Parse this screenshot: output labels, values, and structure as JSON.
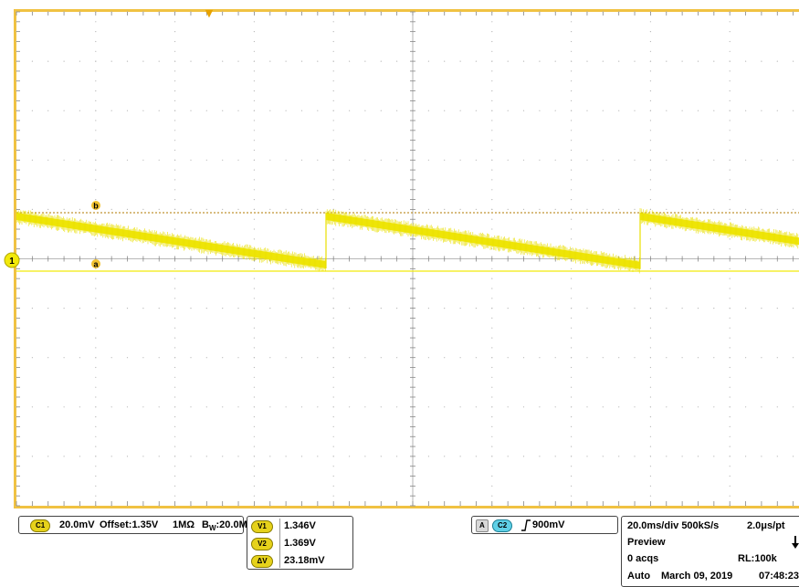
{
  "colors": {
    "trace": "#f2e90b",
    "frame": "#f0c242",
    "grid": "#9a9a9a",
    "cyan": "#5fd0e6"
  },
  "scope": {
    "trigger_marker": "▼",
    "channel_marker": "1",
    "cursor_b_label": "b",
    "cursor_a_label": "a"
  },
  "channel_panel": {
    "badge": "C1",
    "scale": "20.0mV",
    "offset": "Offset:1.35V",
    "impedance": "1MΩ",
    "bw_prefix": "B",
    "bw_sub": "W",
    "bw_value": ":20.0M"
  },
  "cursor_panel": {
    "v1_badge": "V1",
    "v1_value": "1.346V",
    "v2_badge": "V2",
    "v2_value": "1.369V",
    "dv_badge": "ΔV",
    "dv_value": "23.18mV"
  },
  "trigger_panel": {
    "mode_badge": "A",
    "source_badge": "C2",
    "slope_icon": "rising-edge-icon",
    "level": "900mV"
  },
  "acq_panel": {
    "timebase": "20.0ms/div 500kS/s",
    "resolution": "2.0μs/pt",
    "state": "Preview",
    "acqs": "0 acqs",
    "record_length": "RL:100k",
    "mode": "Auto",
    "date": "March 09, 2019",
    "time": "07:48:23"
  }
}
